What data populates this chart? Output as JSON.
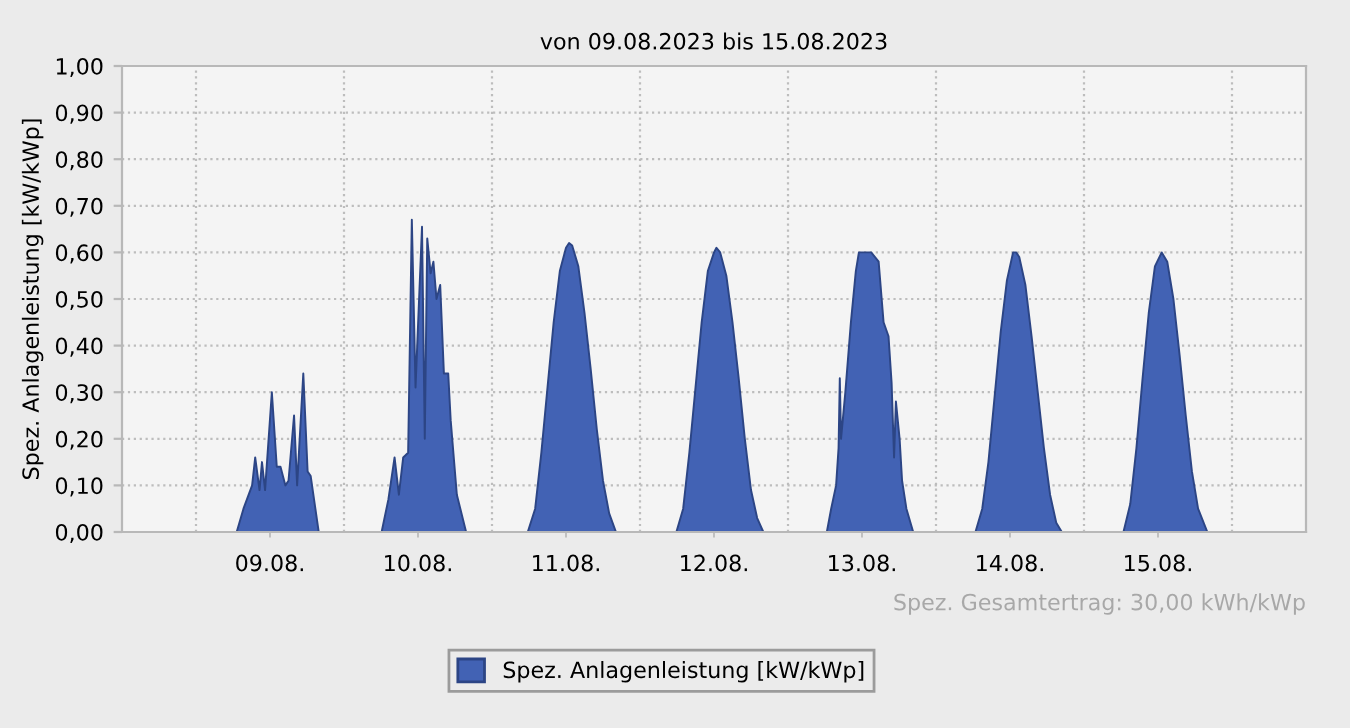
{
  "chart_data": {
    "type": "area",
    "title": "von 09.08.2023 bis 15.08.2023",
    "ylabel": "Spez. Anlagenleistung [kW/kWp]",
    "annotations": [
      "Spez. Gesamtertrag: 30,00 kWh/kWp"
    ],
    "series": [
      {
        "name": "Spez. Anlagenleistung [kW/kWp]",
        "color": "#4262b4",
        "x": [
          "2023-08-09T00:00",
          "2023-08-09T06:36",
          "2023-08-09T07:42",
          "2023-08-09T09:06",
          "2023-08-09T09:36",
          "2023-08-09T10:18",
          "2023-08-09T10:42",
          "2023-08-09T11:12",
          "2023-08-09T12:18",
          "2023-08-09T13:06",
          "2023-08-09T13:42",
          "2023-08-09T14:30",
          "2023-08-09T15:00",
          "2023-08-09T15:54",
          "2023-08-09T16:24",
          "2023-08-09T17:24",
          "2023-08-09T18:06",
          "2023-08-09T18:36",
          "2023-08-09T19:54",
          "2023-08-10T06:06",
          "2023-08-10T07:12",
          "2023-08-10T08:12",
          "2023-08-10T08:54",
          "2023-08-10T09:36",
          "2023-08-10T10:24",
          "2023-08-10T11:00",
          "2023-08-10T11:36",
          "2023-08-10T12:39",
          "2023-08-10T13:06",
          "2023-08-10T13:30",
          "2023-08-10T14:03",
          "2023-08-10T14:30",
          "2023-08-10T15:00",
          "2023-08-10T15:36",
          "2023-08-10T16:12",
          "2023-08-10T16:54",
          "2023-08-10T17:18",
          "2023-08-10T18:18",
          "2023-08-10T19:48",
          "2023-08-11T05:48",
          "2023-08-11T07:00",
          "2023-08-11T08:00",
          "2023-08-11T09:00",
          "2023-08-11T10:00",
          "2023-08-11T11:00",
          "2023-08-11T12:00",
          "2023-08-11T12:30",
          "2023-08-11T13:00",
          "2023-08-11T14:00",
          "2023-08-11T15:00",
          "2023-08-11T16:00",
          "2023-08-11T17:00",
          "2023-08-11T18:00",
          "2023-08-11T19:00",
          "2023-08-11T20:06",
          "2023-08-12T05:54",
          "2023-08-12T07:00",
          "2023-08-12T08:00",
          "2023-08-12T09:00",
          "2023-08-12T10:00",
          "2023-08-12T11:00",
          "2023-08-12T12:00",
          "2023-08-12T12:24",
          "2023-08-12T13:00",
          "2023-08-12T14:00",
          "2023-08-12T15:00",
          "2023-08-12T16:00",
          "2023-08-12T17:00",
          "2023-08-12T18:00",
          "2023-08-12T19:00",
          "2023-08-12T20:00",
          "2023-08-13T06:18",
          "2023-08-13T07:00",
          "2023-08-13T07:48",
          "2023-08-13T08:12",
          "2023-08-13T08:24",
          "2023-08-13T08:36",
          "2023-08-13T09:18",
          "2023-08-13T10:12",
          "2023-08-13T11:00",
          "2023-08-13T11:30",
          "2023-08-13T12:30",
          "2023-08-13T13:30",
          "2023-08-13T14:42",
          "2023-08-13T15:30",
          "2023-08-13T16:18",
          "2023-08-13T16:48",
          "2023-08-13T17:12",
          "2023-08-13T17:30",
          "2023-08-13T18:06",
          "2023-08-13T18:30",
          "2023-08-13T19:12",
          "2023-08-13T20:18",
          "2023-08-14T06:24",
          "2023-08-14T07:30",
          "2023-08-14T08:30",
          "2023-08-14T09:30",
          "2023-08-14T10:30",
          "2023-08-14T11:30",
          "2023-08-14T12:30",
          "2023-08-14T13:00",
          "2023-08-14T13:30",
          "2023-08-14T14:30",
          "2023-08-14T15:30",
          "2023-08-14T16:30",
          "2023-08-14T17:30",
          "2023-08-14T18:30",
          "2023-08-14T19:30",
          "2023-08-14T20:24",
          "2023-08-15T06:24",
          "2023-08-15T07:30",
          "2023-08-15T08:30",
          "2023-08-15T09:30",
          "2023-08-15T10:30",
          "2023-08-15T11:30",
          "2023-08-15T12:36",
          "2023-08-15T13:30",
          "2023-08-15T14:30",
          "2023-08-15T15:30",
          "2023-08-15T16:30",
          "2023-08-15T17:30",
          "2023-08-15T18:30",
          "2023-08-15T20:00",
          "2023-08-16T00:00"
        ],
        "values": [
          0,
          0,
          0.05,
          0.1,
          0.16,
          0.09,
          0.15,
          0.09,
          0.3,
          0.14,
          0.14,
          0.1,
          0.11,
          0.25,
          0.1,
          0.34,
          0.13,
          0.12,
          0,
          0,
          0.07,
          0.16,
          0.08,
          0.16,
          0.17,
          0.67,
          0.31,
          0.655,
          0.2,
          0.63,
          0.555,
          0.58,
          0.5,
          0.53,
          0.34,
          0.34,
          0.24,
          0.08,
          0,
          0,
          0.05,
          0.17,
          0.31,
          0.45,
          0.56,
          0.61,
          0.62,
          0.615,
          0.57,
          0.47,
          0.35,
          0.22,
          0.11,
          0.04,
          0,
          0,
          0.05,
          0.17,
          0.31,
          0.45,
          0.56,
          0.6,
          0.61,
          0.6,
          0.55,
          0.45,
          0.33,
          0.2,
          0.09,
          0.03,
          0,
          0,
          0.05,
          0.1,
          0.18,
          0.33,
          0.2,
          0.3,
          0.45,
          0.56,
          0.6,
          0.6,
          0.6,
          0.58,
          0.45,
          0.42,
          0.32,
          0.16,
          0.28,
          0.2,
          0.11,
          0.05,
          0,
          0,
          0.05,
          0.15,
          0.29,
          0.43,
          0.54,
          0.6,
          0.6,
          0.59,
          0.53,
          0.42,
          0.3,
          0.18,
          0.08,
          0.02,
          0,
          0,
          0.06,
          0.18,
          0.33,
          0.47,
          0.57,
          0.6,
          0.58,
          0.5,
          0.38,
          0.25,
          0.13,
          0.05,
          0,
          0
        ]
      }
    ],
    "xlim": [
      "2023-08-08T12:00",
      "2023-08-16T12:00"
    ],
    "xticks": [
      {
        "value": "2023-08-09",
        "label": null
      },
      {
        "value": "2023-08-09T12:00",
        "label": "09.08."
      },
      {
        "value": "2023-08-10",
        "label": null
      },
      {
        "value": "2023-08-10T12:00",
        "label": "10.08."
      },
      {
        "value": "2023-08-11",
        "label": null
      },
      {
        "value": "2023-08-11T12:00",
        "label": "11.08."
      },
      {
        "value": "2023-08-12",
        "label": null
      },
      {
        "value": "2023-08-12T12:00",
        "label": "12.08."
      },
      {
        "value": "2023-08-13",
        "label": null
      },
      {
        "value": "2023-08-13T12:00",
        "label": "13.08."
      },
      {
        "value": "2023-08-14",
        "label": null
      },
      {
        "value": "2023-08-14T12:00",
        "label": "14.08."
      },
      {
        "value": "2023-08-15",
        "label": null
      },
      {
        "value": "2023-08-15T12:00",
        "label": "15.08."
      },
      {
        "value": "2023-08-16",
        "label": null
      }
    ],
    "ylim": [
      0,
      1
    ],
    "yticks": [
      {
        "value": 0,
        "label": "0,00"
      },
      {
        "value": 0.1,
        "label": "0,10"
      },
      {
        "value": 0.2,
        "label": "0,20"
      },
      {
        "value": 0.3,
        "label": "0,30"
      },
      {
        "value": 0.4,
        "label": "0,40"
      },
      {
        "value": 0.5,
        "label": "0,50"
      },
      {
        "value": 0.6,
        "label": "0,60"
      },
      {
        "value": 0.7,
        "label": "0,70"
      },
      {
        "value": 0.8,
        "label": "0,80"
      },
      {
        "value": 0.9,
        "label": "0,90"
      },
      {
        "value": 1,
        "label": "1,00"
      }
    ],
    "grid": true,
    "legend": "bottom"
  }
}
